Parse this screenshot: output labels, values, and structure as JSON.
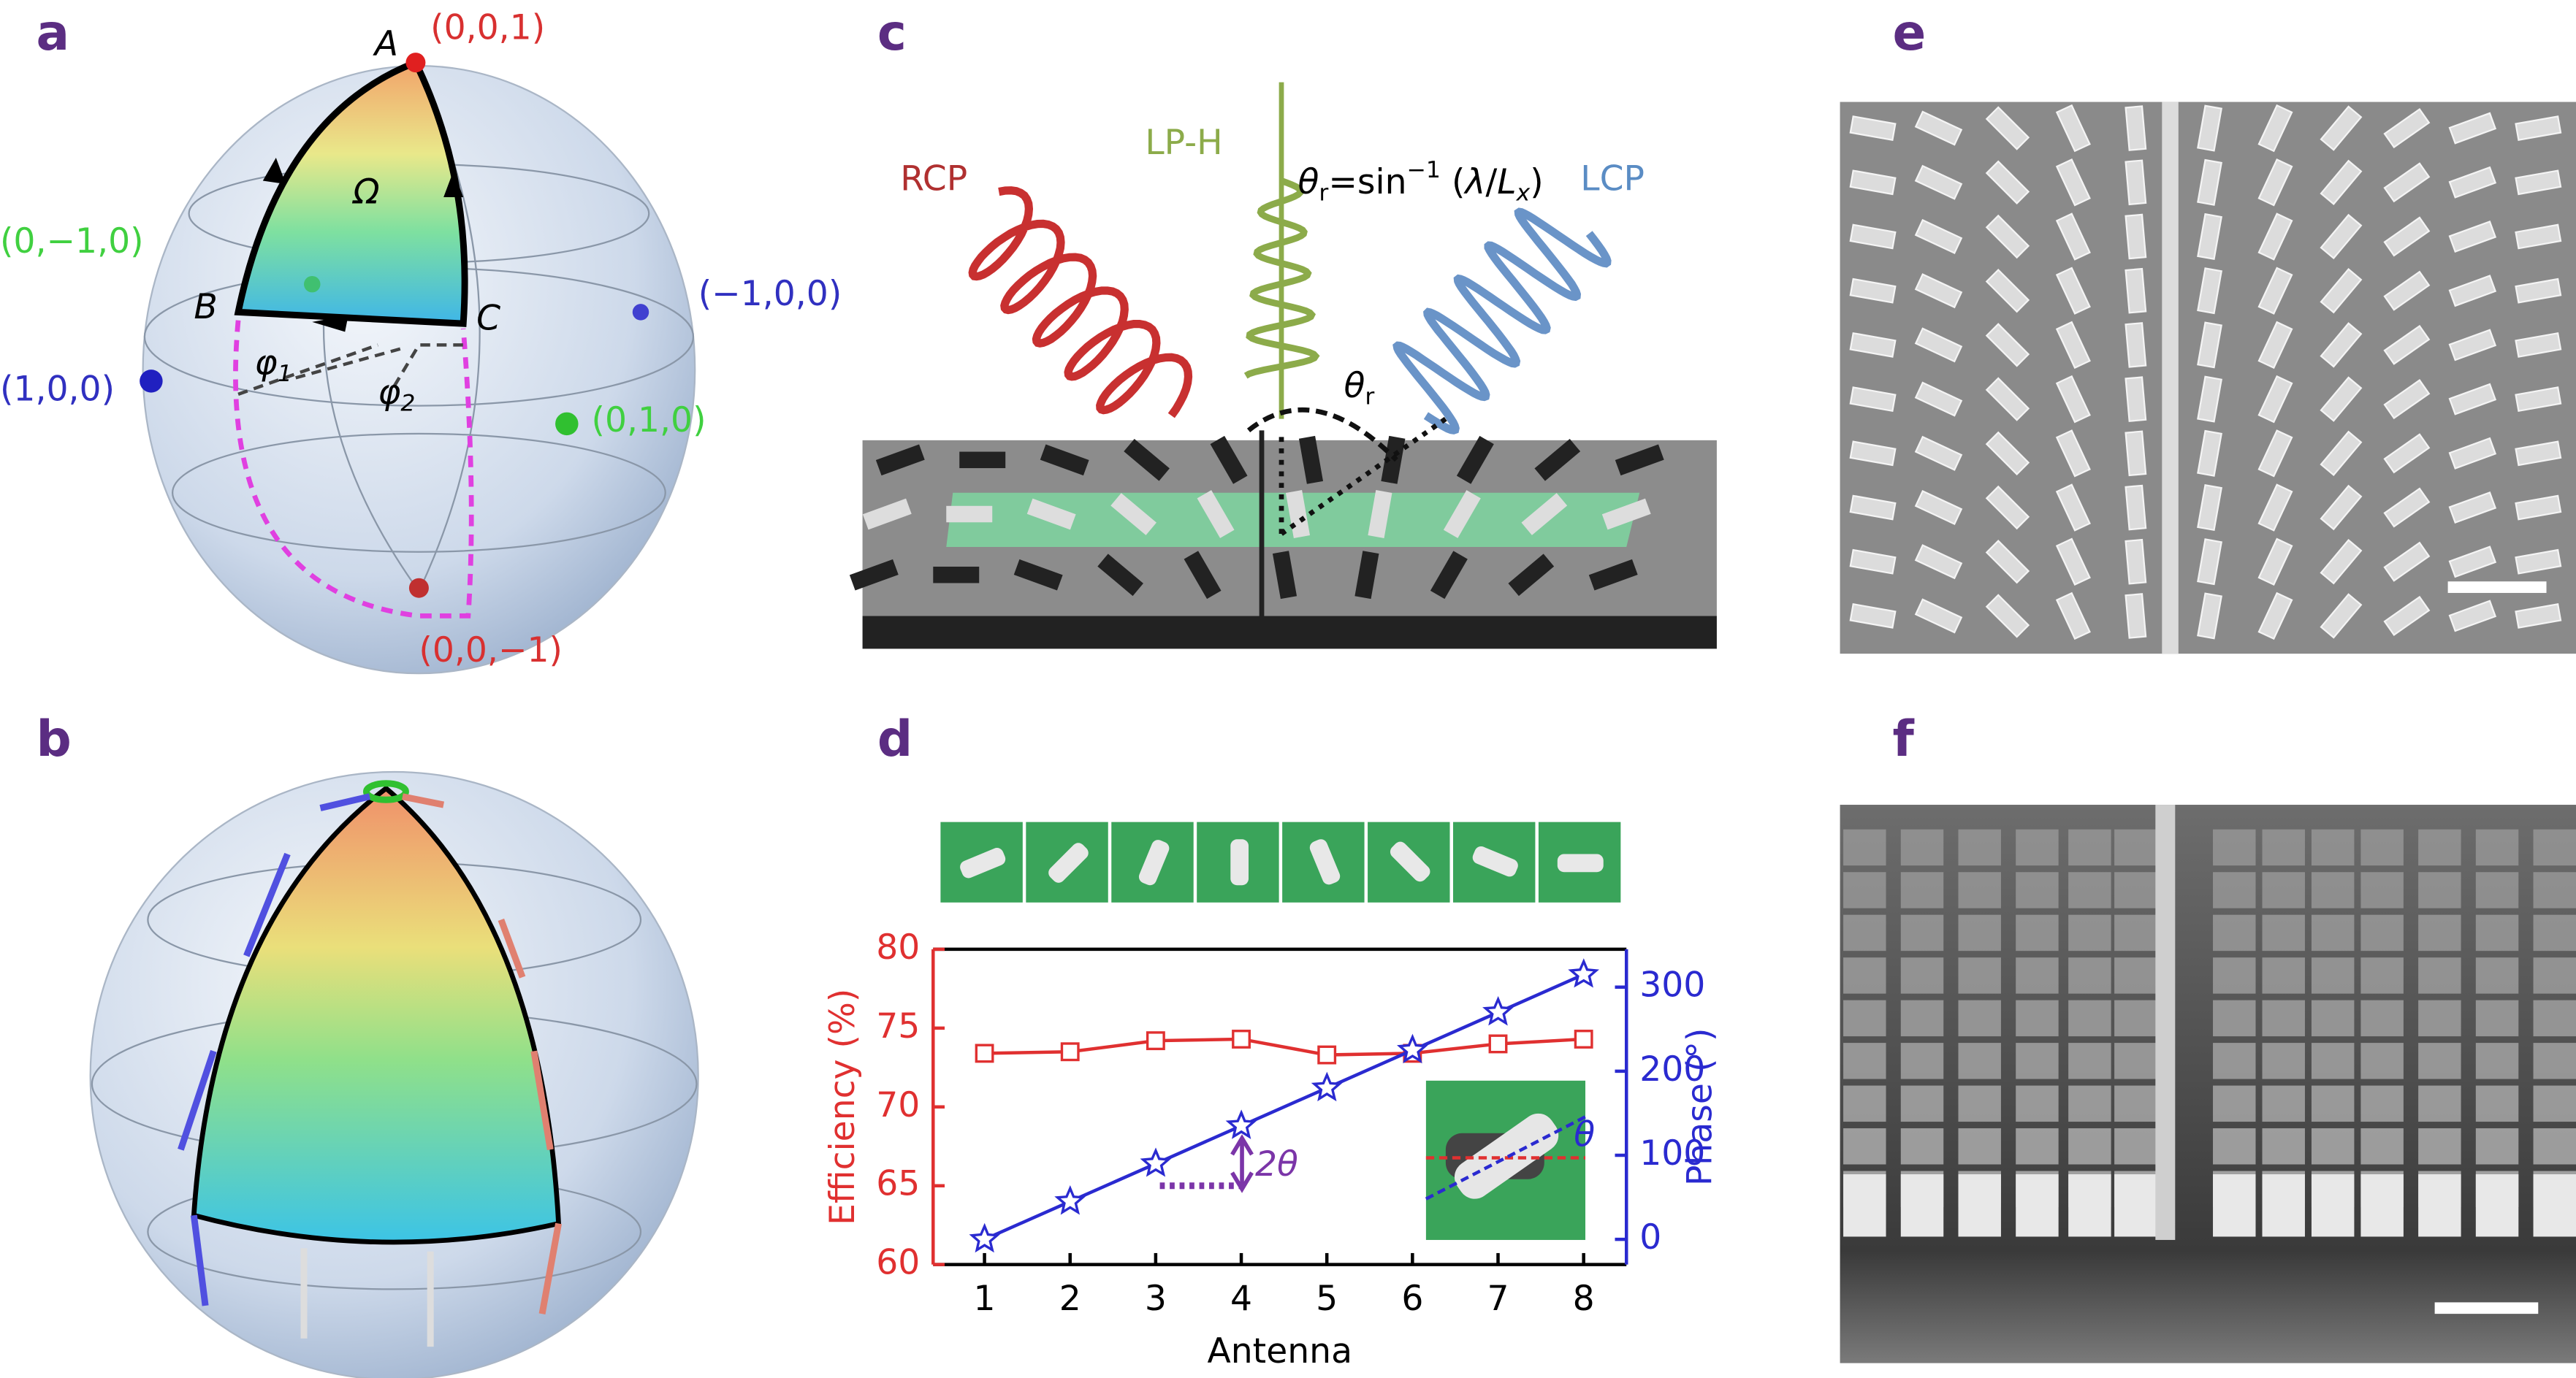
{
  "panels": {
    "a": {
      "label": "a",
      "point_A": "A",
      "north": "(0,0,1)",
      "solid_angle": "Ω",
      "y_neg": "(0,−1,0)",
      "point_B": "B",
      "point_C": "C",
      "x_neg": "(−1,0,0)",
      "x_pos": "(1,0,0)",
      "phi1": {
        "symbol": "φ",
        "sub": "1"
      },
      "phi2": {
        "symbol": "φ",
        "sub": "2"
      },
      "y_pos": "(0,1,0)",
      "south": "(0,0,−1)"
    },
    "b": {
      "label": "b"
    },
    "c": {
      "label": "c",
      "rcp": "RCP",
      "lph": "LP-H",
      "lcp": "LCP",
      "formula": [
        {
          "t": "θ",
          "s": "italic"
        },
        {
          "t": "r",
          "s": "sub"
        },
        {
          "t": "=sin"
        },
        {
          "t": "−1",
          "s": "sup"
        },
        {
          "t": " ("
        },
        {
          "t": "λ",
          "s": "italic"
        },
        {
          "t": "/"
        },
        {
          "t": "L",
          "s": "italic"
        },
        {
          "t": "x",
          "s": "sub-italic"
        },
        {
          "t": ")"
        }
      ],
      "theta_r": {
        "symbol": "θ",
        "sub": "r"
      }
    },
    "d": {
      "label": "d"
    },
    "e": {
      "label": "e"
    },
    "f": {
      "label": "f"
    }
  },
  "chart_data": {
    "type": "line",
    "x": [
      1,
      2,
      3,
      4,
      5,
      6,
      7,
      8
    ],
    "xlim": [
      0.4,
      8.5
    ],
    "xticks": [
      1,
      2,
      3,
      4,
      5,
      6,
      7,
      8
    ],
    "ylim": [
      60,
      80
    ],
    "yticks": [
      60,
      65,
      70,
      75,
      80
    ],
    "y2lim": [
      -30,
      345
    ],
    "y2ticks": [
      0,
      100,
      200,
      300
    ],
    "xlabel": "Antenna",
    "ylabel": "Efficiency (%)",
    "y2label": "Phase (°)",
    "series": [
      {
        "color": "#e03030",
        "marker": "square",
        "values": [
          73.4,
          73.5,
          74.2,
          74.3,
          73.3,
          73.4,
          74.0,
          74.3
        ]
      },
      {
        "color": "#2a2ad0",
        "marker": "star",
        "axis": "y2",
        "values": [
          0,
          45,
          90,
          135,
          180,
          225,
          270,
          315
        ]
      }
    ],
    "annotations": [
      "2θ",
      "θ"
    ]
  }
}
